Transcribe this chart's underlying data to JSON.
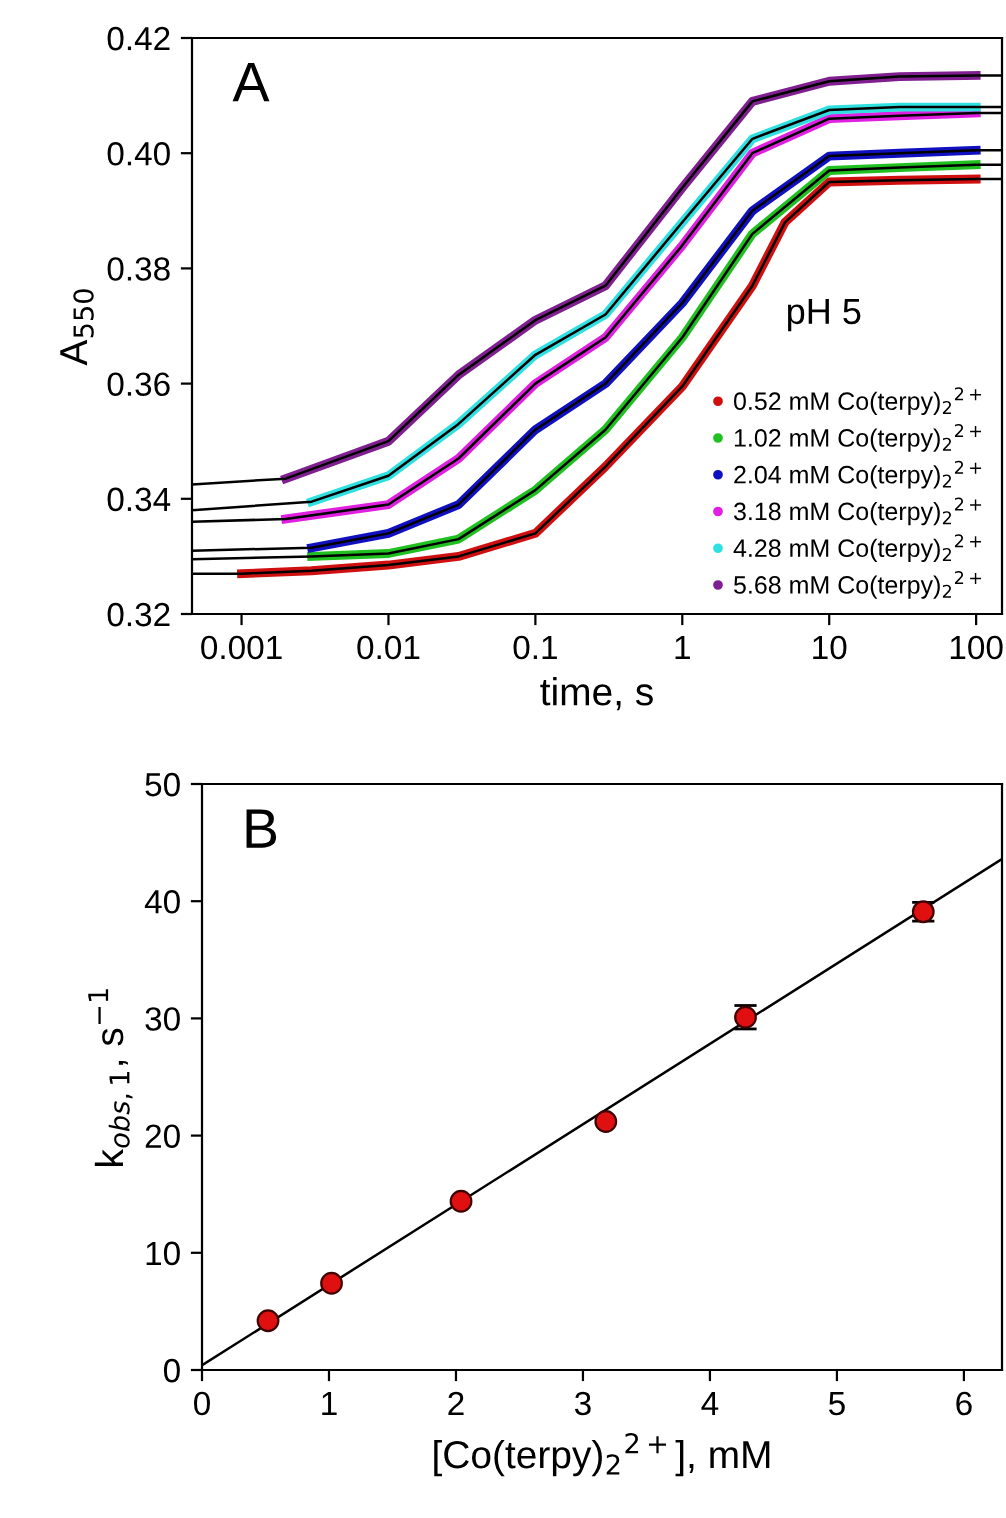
{
  "chart_data": [
    {
      "type": "line",
      "xlabel": "time, s",
      "ylabel": "A$_{550}$",
      "log": "x",
      "legend": "lower right",
      "grid": false,
      "xlim": [
        0.00046,
        150
      ],
      "ylim": [
        0.32,
        0.42
      ],
      "xticks": [
        {
          "value": 0.001,
          "label": "0.001"
        },
        {
          "value": 0.01,
          "label": "0.01"
        },
        {
          "value": 0.1,
          "label": "0.1"
        },
        {
          "value": 1,
          "label": "1"
        },
        {
          "value": 10,
          "label": "10"
        },
        {
          "value": 100,
          "label": "100"
        }
      ],
      "yticks": [
        {
          "value": 0.32,
          "label": "0.32"
        },
        {
          "value": 0.34,
          "label": "0.34"
        },
        {
          "value": 0.36,
          "label": "0.36"
        },
        {
          "value": 0.38,
          "label": "0.38"
        },
        {
          "value": 0.4,
          "label": "0.40"
        },
        {
          "value": 0.42,
          "label": "0.42"
        }
      ],
      "annotations": [
        "A",
        "pH 5"
      ],
      "series": [
        {
          "name": "0.52 mM Co(terpy)$_{2}$$^{2+}$",
          "color": "#d01010",
          "x": [
            0.001,
            0.003,
            0.01,
            0.03,
            0.1,
            0.3,
            1,
            3,
            5,
            10,
            30,
            100
          ],
          "values": [
            0.327,
            0.3275,
            0.3285,
            0.33,
            0.334,
            0.3456,
            0.3595,
            0.377,
            0.388,
            0.395,
            0.3953,
            0.3955
          ]
        },
        {
          "name": "1.02 mM Co(terpy)$_{2}$$^{2+}$",
          "color": "#20c020",
          "x": [
            0.003,
            0.01,
            0.03,
            0.1,
            0.3,
            1,
            3,
            10,
            30,
            100
          ],
          "values": [
            0.33,
            0.3305,
            0.333,
            0.3415,
            0.352,
            0.368,
            0.386,
            0.397,
            0.3975,
            0.398
          ]
        },
        {
          "name": "2.04 mM Co(terpy)$_{2}$$^{2+}$",
          "color": "#1010c0",
          "x": [
            0.003,
            0.01,
            0.03,
            0.1,
            0.3,
            1,
            3,
            10,
            30,
            100
          ],
          "values": [
            0.3315,
            0.334,
            0.339,
            0.352,
            0.36,
            0.374,
            0.39,
            0.3995,
            0.4,
            0.4005
          ]
        },
        {
          "name": "3.18 mM Co(terpy)$_{2}$$^{2+}$",
          "color": "#e020e0",
          "x": [
            0.002,
            0.01,
            0.03,
            0.1,
            0.3,
            1,
            3,
            10,
            30,
            100
          ],
          "values": [
            0.3365,
            0.339,
            0.347,
            0.36,
            0.368,
            0.384,
            0.4,
            0.406,
            0.4065,
            0.407
          ]
        },
        {
          "name": "4.28 mM Co(terpy)$_{2}$$^{2+}$",
          "color": "#30e0e0",
          "x": [
            0.003,
            0.01,
            0.03,
            0.1,
            0.3,
            1,
            3,
            10,
            30,
            100
          ],
          "values": [
            0.3395,
            0.344,
            0.353,
            0.365,
            0.372,
            0.388,
            0.4025,
            0.4075,
            0.408,
            0.408
          ]
        },
        {
          "name": "5.68 mM Co(terpy)$_{2}$$^{2+}$",
          "color": "#802090",
          "x": [
            0.002,
            0.01,
            0.03,
            0.1,
            0.3,
            1,
            3,
            10,
            30,
            100
          ],
          "values": [
            0.3435,
            0.35,
            0.3615,
            0.371,
            0.377,
            0.394,
            0.409,
            0.4125,
            0.4133,
            0.4135
          ]
        },
        {
          "color": "#000000",
          "x": [
            0.00046,
            0.001,
            0.003,
            0.01,
            0.03,
            0.1,
            0.3,
            1,
            3,
            5,
            10,
            30,
            100,
            150
          ],
          "values": [
            0.327,
            0.327,
            0.3275,
            0.3285,
            0.33,
            0.334,
            0.3456,
            0.3595,
            0.377,
            0.388,
            0.395,
            0.3953,
            0.3955,
            0.3955
          ]
        },
        {
          "color": "#000000",
          "x": [
            0.00046,
            0.003,
            0.01,
            0.03,
            0.1,
            0.3,
            1,
            3,
            10,
            30,
            100,
            150
          ],
          "values": [
            0.3295,
            0.33,
            0.3305,
            0.333,
            0.3415,
            0.352,
            0.368,
            0.386,
            0.397,
            0.3975,
            0.398,
            0.398
          ]
        },
        {
          "color": "#000000",
          "x": [
            0.00046,
            0.003,
            0.01,
            0.03,
            0.1,
            0.3,
            1,
            3,
            10,
            30,
            100,
            150
          ],
          "values": [
            0.331,
            0.3315,
            0.334,
            0.339,
            0.352,
            0.36,
            0.374,
            0.39,
            0.3995,
            0.4,
            0.4005,
            0.4005
          ]
        },
        {
          "color": "#000000",
          "x": [
            0.00046,
            0.002,
            0.01,
            0.03,
            0.1,
            0.3,
            1,
            3,
            10,
            30,
            100,
            150
          ],
          "values": [
            0.336,
            0.3365,
            0.339,
            0.347,
            0.36,
            0.368,
            0.384,
            0.4,
            0.406,
            0.4065,
            0.407,
            0.407
          ]
        },
        {
          "color": "#000000",
          "x": [
            0.00046,
            0.003,
            0.01,
            0.03,
            0.1,
            0.3,
            1,
            3,
            10,
            30,
            100,
            150
          ],
          "values": [
            0.338,
            0.3395,
            0.344,
            0.353,
            0.365,
            0.372,
            0.388,
            0.4025,
            0.4075,
            0.408,
            0.408,
            0.408
          ]
        },
        {
          "color": "#000000",
          "x": [
            0.00046,
            0.002,
            0.01,
            0.03,
            0.1,
            0.3,
            1,
            3,
            10,
            30,
            100,
            150
          ],
          "values": [
            0.3425,
            0.3435,
            0.35,
            0.3615,
            0.371,
            0.377,
            0.394,
            0.409,
            0.4125,
            0.4133,
            0.4135,
            0.4135
          ]
        }
      ]
    },
    {
      "type": "scatter",
      "xlabel": "[Co(terpy)$_{2}$$^{2+}$], mM",
      "ylabel": "k$_{obs,1}$, s$^{−1}$",
      "grid": false,
      "xlim": [
        0,
        6.3
      ],
      "ylim": [
        0,
        50
      ],
      "xticks": [
        0,
        1,
        2,
        3,
        4,
        5,
        6
      ],
      "yticks": [
        0,
        10,
        20,
        30,
        40,
        50
      ],
      "annotations": [
        "B"
      ],
      "series": [
        {
          "color": "#e01010",
          "marker": "circle",
          "x": [
            0.52,
            1.02,
            2.04,
            3.18,
            4.28,
            5.68
          ],
          "values": [
            4.2,
            7.4,
            14.4,
            21.2,
            30.1,
            39.1
          ],
          "errors": [
            null,
            null,
            null,
            null,
            1.0,
            0.8
          ]
        },
        {
          "type": "line",
          "color": "#000000",
          "x": [
            0,
            6.3
          ],
          "values": [
            0.4,
            43.6
          ]
        }
      ]
    }
  ]
}
